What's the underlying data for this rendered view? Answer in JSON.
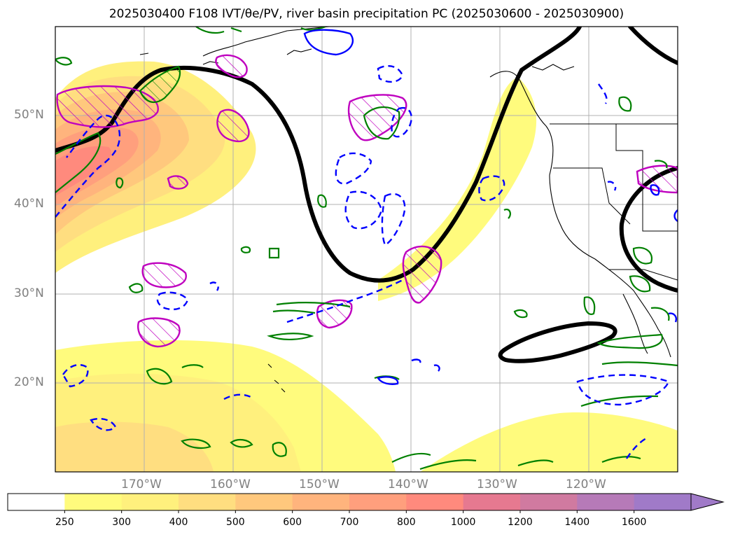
{
  "title": "2025030400 F108 IVT/θe/PV, river basin precipitation PC (2025030600 - 2025030900)",
  "lat_labels": [
    "50°N",
    "40°N",
    "30°N",
    "20°N"
  ],
  "lon_labels": [
    "170°W",
    "160°W",
    "150°W",
    "140°W",
    "130°W",
    "120°W"
  ],
  "colorbar": {
    "ticks": [
      "250",
      "300",
      "400",
      "500",
      "600",
      "700",
      "800",
      "1000",
      "1200",
      "1400",
      "1600"
    ],
    "colors": [
      "#ffffff",
      "#fffb7d",
      "#fff07d",
      "#ffde80",
      "#ffc87d",
      "#ffb47d",
      "#ff9f7d",
      "#ff8a7d",
      "#e67990",
      "#d07aa0",
      "#b67ab8",
      "#a07ac8"
    ],
    "extend": "max"
  },
  "contour_colors": {
    "theta_e": "#000000",
    "pv": "#008000",
    "negative_dashed": "#0000ff",
    "precip_pc": "#bf00bf"
  },
  "map": {
    "lat_range": [
      10,
      60
    ],
    "lon_range": [
      -180,
      -110
    ],
    "grid": true
  }
}
